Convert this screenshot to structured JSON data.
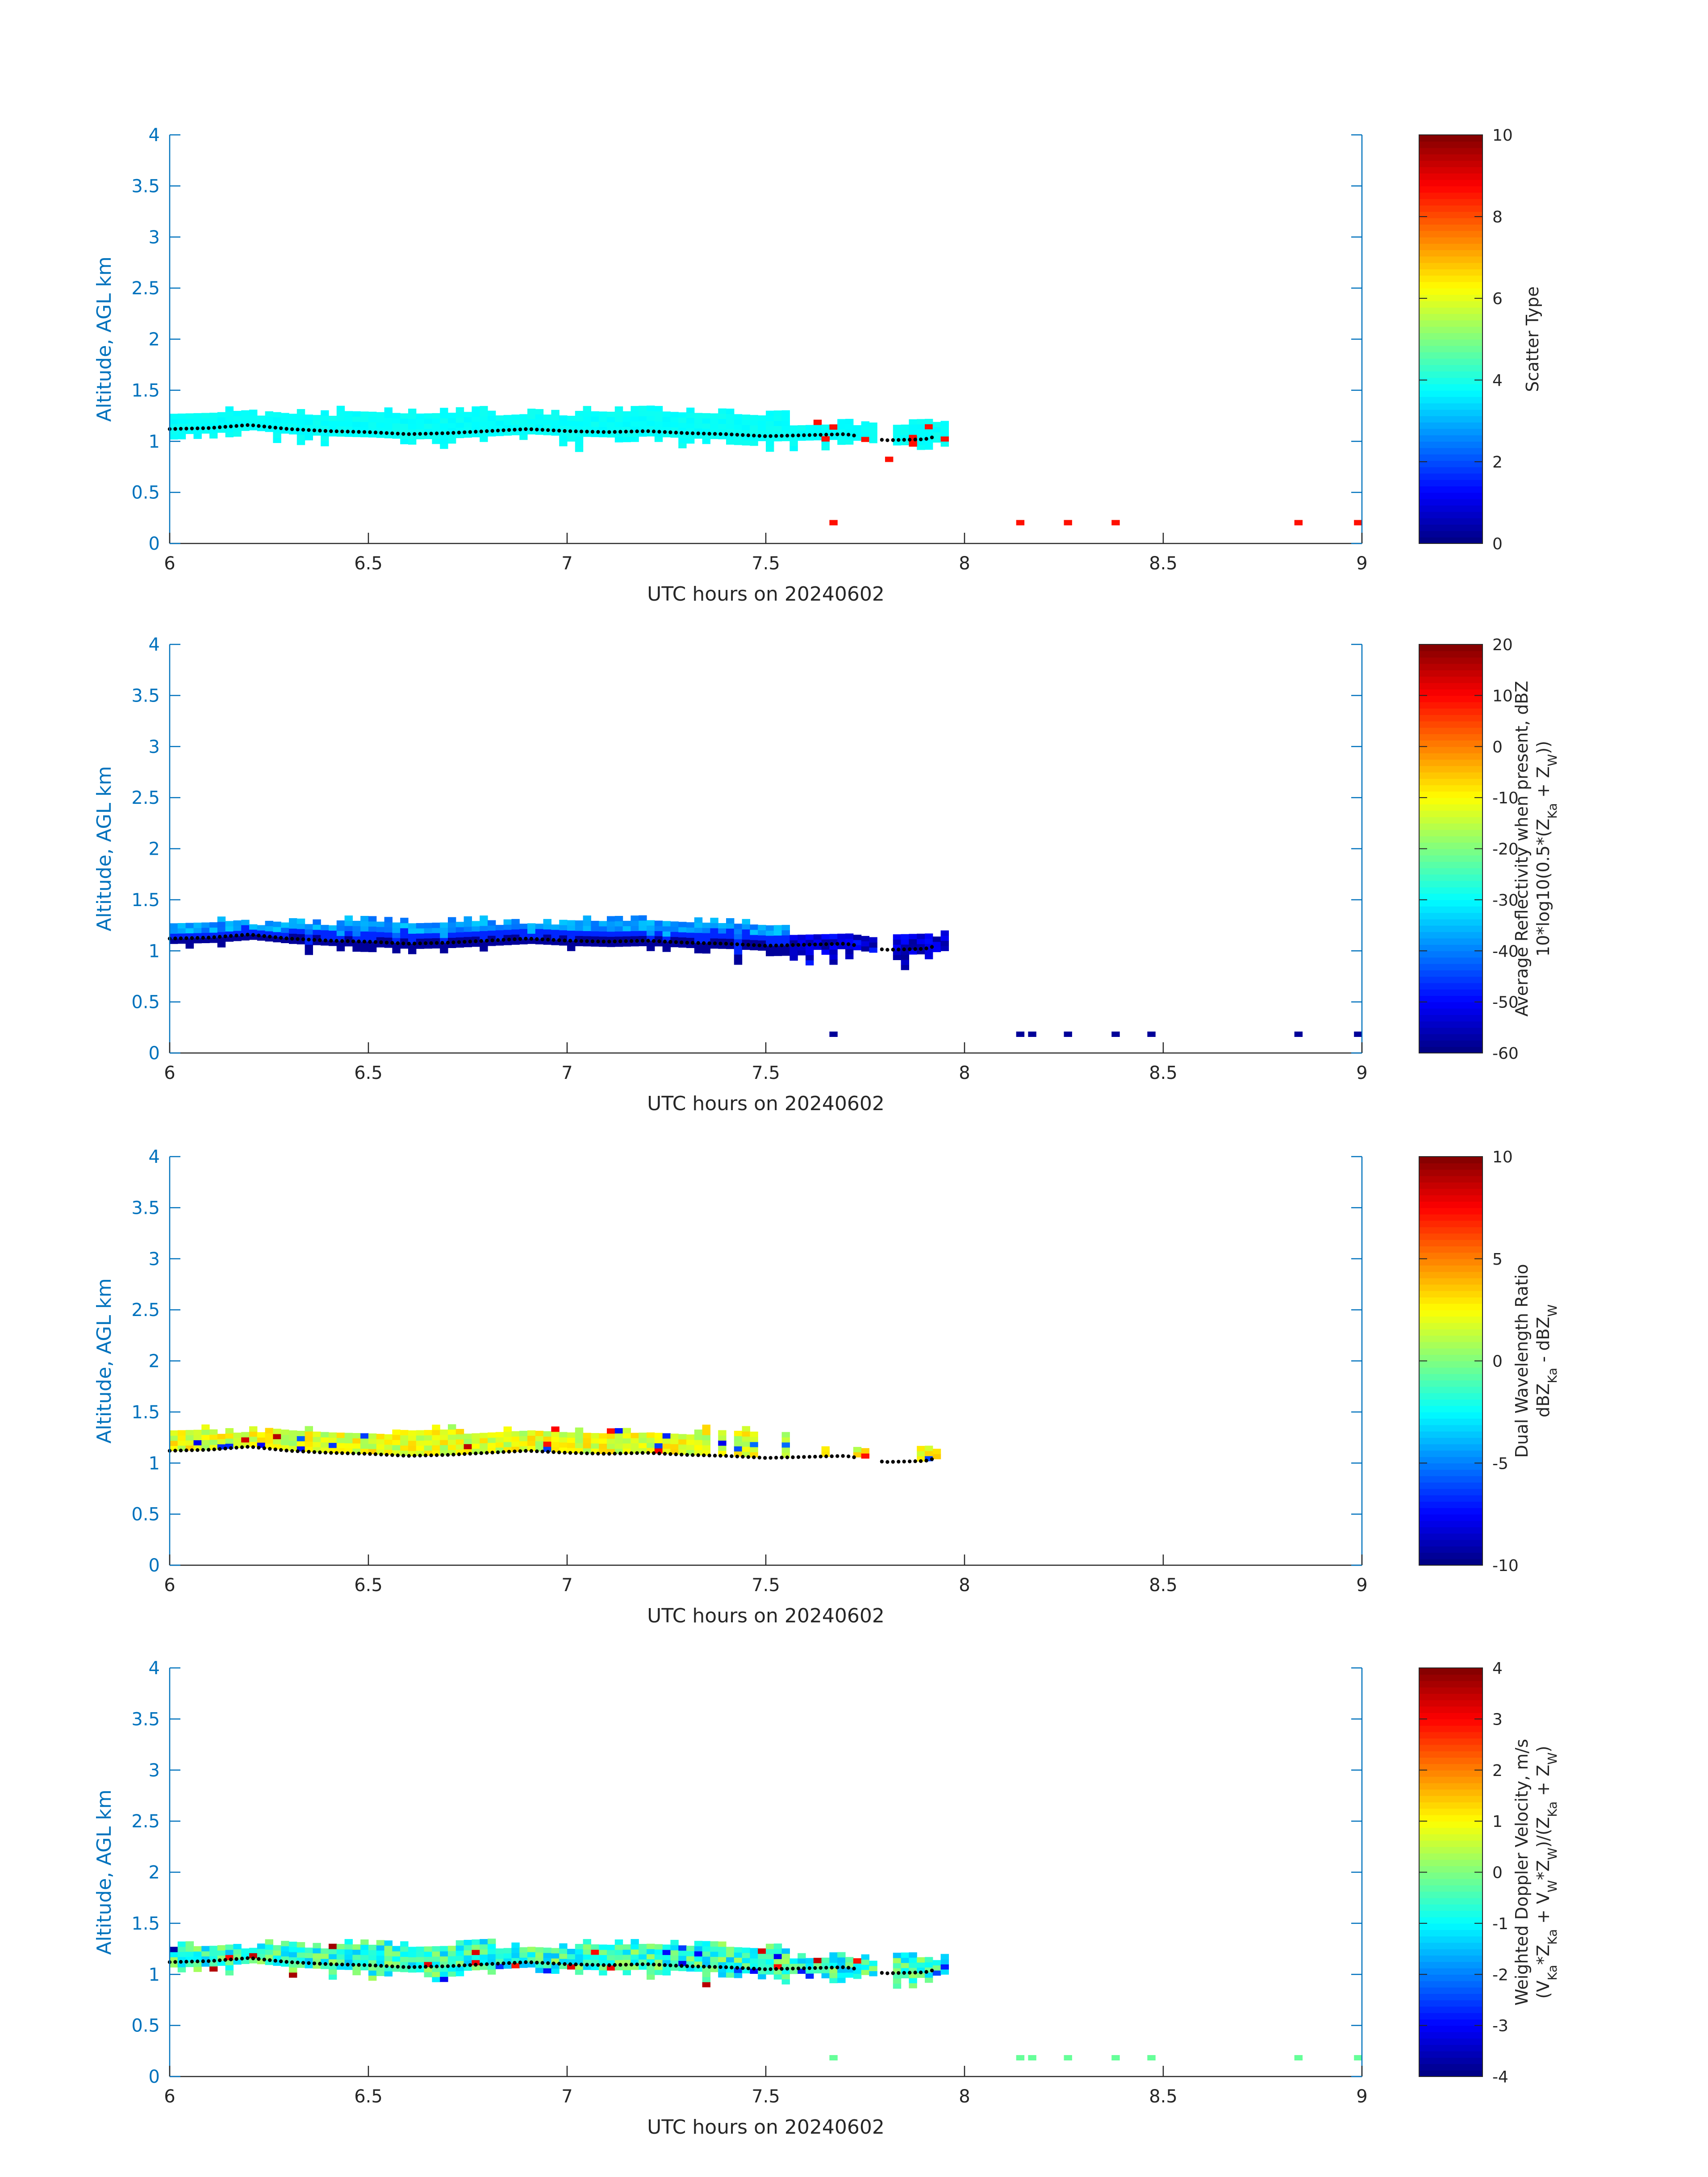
{
  "chart_data": [
    {
      "type": "heatmap",
      "xlabel": "UTC hours on 20240602",
      "ylabel": "Altitude, AGL km",
      "xlim": [
        6,
        9
      ],
      "ylim": [
        0,
        4
      ],
      "xticks": [
        "6",
        "6.5",
        "7",
        "7.5",
        "8",
        "8.5",
        "9"
      ],
      "yticks": [
        "0",
        "0.5",
        "1",
        "1.5",
        "2",
        "2.5",
        "3",
        "3.5",
        "4"
      ],
      "colorbar": {
        "label_lines": [
          "Scatter Type"
        ],
        "clim": [
          0,
          10
        ],
        "ticks": [
          "0",
          "2",
          "4",
          "6",
          "8",
          "10"
        ],
        "colormap": "jet"
      },
      "field": {
        "band_value": 3.8,
        "low_values": [
          8.6
        ],
        "surface_value": 8.6,
        "surface_x": [
          7.66,
          8.13,
          8.25,
          8.37,
          8.83,
          8.98
        ],
        "anomaly_value": 8.6
      }
    },
    {
      "type": "heatmap",
      "xlabel": "UTC hours on 20240602",
      "ylabel": "Altitude, AGL km",
      "xlim": [
        6,
        9
      ],
      "ylim": [
        0,
        4
      ],
      "xticks": [
        "6",
        "6.5",
        "7",
        "7.5",
        "8",
        "8.5",
        "9"
      ],
      "yticks": [
        "0",
        "0.5",
        "1",
        "1.5",
        "2",
        "2.5",
        "3",
        "3.5",
        "4"
      ],
      "colorbar": {
        "label_lines": [
          "Average Reflectivity when present, dBZ",
          "10*log10(0.5*(Z_Ka + Z_W))"
        ],
        "clim": [
          -60,
          20
        ],
        "ticks": [
          "-60",
          "-50",
          "-40",
          "-30",
          "-20",
          "-10",
          "0",
          "10",
          "20"
        ],
        "colormap": "jet"
      },
      "field": {
        "top_value": -38,
        "mid_value": -47,
        "base_value": -58,
        "surface_value": -58,
        "surface_x": [
          7.66,
          8.13,
          8.16,
          8.25,
          8.37,
          8.46,
          8.83,
          8.98
        ]
      }
    },
    {
      "type": "heatmap",
      "xlabel": "UTC hours on 20240602",
      "ylabel": "Altitude, AGL km",
      "xlim": [
        6,
        9
      ],
      "ylim": [
        0,
        4
      ],
      "xticks": [
        "6",
        "6.5",
        "7",
        "7.5",
        "8",
        "8.5",
        "9"
      ],
      "yticks": [
        "0",
        "0.5",
        "1",
        "1.5",
        "2",
        "2.5",
        "3",
        "3.5",
        "4"
      ],
      "colorbar": {
        "label_lines": [
          "Dual Wavelength Ratio",
          "dBZ_Ka - dBZ_W"
        ],
        "clim": [
          -10,
          10
        ],
        "ticks": [
          "-10",
          "-5",
          "0",
          "5",
          "10"
        ],
        "colormap": "jet"
      },
      "field": {
        "typical_value": 2.0,
        "range": [
          -8,
          9
        ]
      }
    },
    {
      "type": "heatmap",
      "xlabel": "UTC hours on 20240602",
      "ylabel": "Altitude, AGL km",
      "xlim": [
        6,
        9
      ],
      "ylim": [
        0,
        4
      ],
      "xticks": [
        "6",
        "6.5",
        "7",
        "7.5",
        "8",
        "8.5",
        "9"
      ],
      "yticks": [
        "0",
        "0.5",
        "1",
        "1.5",
        "2",
        "2.5",
        "3",
        "3.5",
        "4"
      ],
      "colorbar": {
        "label_lines": [
          "Weighted Doppler Velocity, m/s",
          "(V_Ka*Z_Ka + V_W*Z_W)/(Z_Ka + Z_W)"
        ],
        "clim": [
          -4,
          4
        ],
        "ticks": [
          "-4",
          "-3",
          "-2",
          "-1",
          "0",
          "1",
          "2",
          "3",
          "4"
        ],
        "colormap": "jet"
      },
      "field": {
        "typical_value": -0.6,
        "range": [
          -3.8,
          3.8
        ],
        "surface_value": -0.2,
        "surface_x": [
          7.66,
          8.13,
          8.16,
          8.25,
          8.37,
          8.46,
          8.83,
          8.98
        ]
      }
    }
  ],
  "cloud_base_line": {
    "x": [
      6.0,
      6.1,
      6.2,
      6.3,
      6.4,
      6.5,
      6.6,
      6.7,
      6.8,
      6.9,
      7.0,
      7.1,
      7.2,
      7.3,
      7.4,
      7.5,
      7.6,
      7.7,
      7.8,
      7.9,
      7.93
    ],
    "y": [
      1.12,
      1.13,
      1.16,
      1.12,
      1.1,
      1.09,
      1.07,
      1.08,
      1.1,
      1.12,
      1.1,
      1.09,
      1.1,
      1.08,
      1.07,
      1.05,
      1.06,
      1.07,
      1.01,
      1.02,
      1.05
    ]
  }
}
